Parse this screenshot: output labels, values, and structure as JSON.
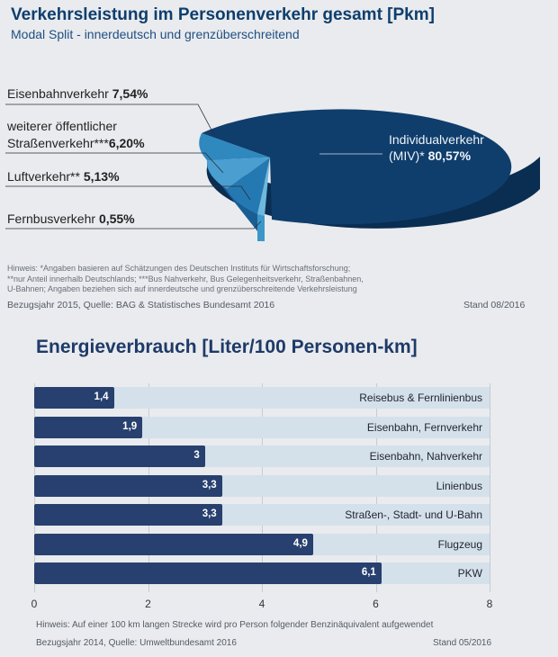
{
  "pie_section": {
    "title": "Verkehrsleistung im Personenverkehr gesamt [Pkm]",
    "subtitle": "Modal Split - innerdeutsch und grenzüberschreitend",
    "note_lines": [
      "Hinweis: *Angaben basieren auf Schätzungen des Deutschen Instituts für Wirtschaftsforschung;",
      "**nur Anteil innerhalb Deutschlands; ***Bus Nahverkehr, Bus Gelegenheitsverkehr, Straßenbahnen,",
      "U-Bahnen; Angaben beziehen sich auf  innerdeutsche und grenzüberschreitende Verkehrsleistung"
    ],
    "source": "Bezugsjahr 2015, Quelle: BAG & Statistisches Bundesamt 2016",
    "stand": "Stand 08/2016",
    "labels": {
      "eisenbahn_name": "Eisenbahnverkehr ",
      "eisenbahn_value": "7,54%",
      "oepnv_line1": "weiterer öffentlicher",
      "oepnv_name": "Straßenverkehr***",
      "oepnv_value": "6,20%",
      "luft_name": "Luftverkehr** ",
      "luft_value": "5,13%",
      "fernbus_name": "Fernbusverkehr ",
      "fernbus_value": "0,55%",
      "miv_line1": "Individualverkehr",
      "miv_name": "(MIV)* ",
      "miv_value": "80,57%"
    }
  },
  "bar_section": {
    "title": "Energieverbrauch [Liter/100 Personen-km]",
    "note": "Hinweis: Auf einer 100 km langen Strecke wird pro Person folgender Benzinäquivalent aufgewendet",
    "source": "Bezugsjahr 2014, Quelle: Umweltbundesamt 2016",
    "stand": "Stand 05/2016"
  },
  "colors": {
    "pie_dark": "#0f3e6d",
    "pie_light": "#2f88be",
    "bar_dark": "#27406f",
    "bar_light": "#d4e0ea"
  },
  "chart_data": [
    {
      "type": "pie",
      "title": "Verkehrsleistung im Personenverkehr gesamt [Pkm]",
      "subtitle": "Modal Split - innerdeutsch und grenzüberschreitend",
      "slices": [
        {
          "label": "Individualverkehr (MIV)*",
          "value": 80.57
        },
        {
          "label": "Eisenbahnverkehr",
          "value": 7.54
        },
        {
          "label": "weiterer öffentlicher Straßenverkehr***",
          "value": 6.2
        },
        {
          "label": "Luftverkehr**",
          "value": 5.13
        },
        {
          "label": "Fernbusverkehr",
          "value": 0.55
        }
      ]
    },
    {
      "type": "bar",
      "orientation": "horizontal",
      "title": "Energieverbrauch [Liter/100 Personen-km]",
      "categories": [
        "Reisebus & Fernlinienbus",
        "Eisenbahn, Fernverkehr",
        "Eisenbahn, Nahverkehr",
        "Linienbus",
        "Straßen-, Stadt- und U-Bahn",
        "Flugzeug",
        "PKW"
      ],
      "values": [
        1.4,
        1.9,
        3,
        3.3,
        3.3,
        4.9,
        6.1
      ],
      "value_labels": [
        "1,4",
        "1,9",
        "3",
        "3,3",
        "3,3",
        "4,9",
        "6,1"
      ],
      "xlim": [
        0,
        8
      ],
      "xticks": [
        "0",
        "2",
        "4",
        "6",
        "8"
      ],
      "grid": true
    }
  ]
}
